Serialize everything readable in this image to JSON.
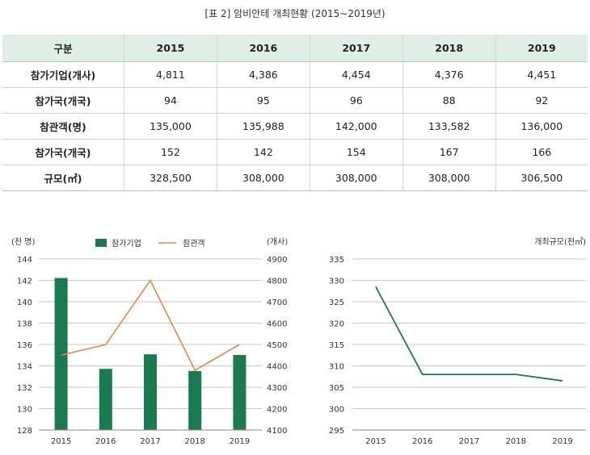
{
  "caption": "[표 2] 암비안테 개최현황 (2015~2019년)",
  "table": {
    "header_label": "구분",
    "years": [
      "2015",
      "2016",
      "2017",
      "2018",
      "2019"
    ],
    "rows": [
      {
        "label": "참가기업(개사)",
        "values": [
          "4,811",
          "4,386",
          "4,454",
          "4,376",
          "4,451"
        ]
      },
      {
        "label": "참가국(개국)",
        "values": [
          "94",
          "95",
          "96",
          "88",
          "92"
        ]
      },
      {
        "label": "참관객(명)",
        "values": [
          "135,000",
          "135,988",
          "142,000",
          "133,582",
          "136,000"
        ]
      },
      {
        "label": "참가국(개국)",
        "values": [
          "152",
          "142",
          "154",
          "167",
          "166"
        ]
      },
      {
        "label": "규모(㎡)",
        "values": [
          "328,500",
          "308,000",
          "308,000",
          "308,000",
          "306,500"
        ]
      }
    ]
  },
  "colors": {
    "bar": "#1b7a4f",
    "visitor_line": "#e8874c",
    "area_line": "#1b7a4f",
    "grid": "#c9c9c9"
  },
  "chart_data": [
    {
      "type": "bar",
      "categories": [
        "2015",
        "2016",
        "2017",
        "2018",
        "2019"
      ],
      "series": [
        {
          "name": "참가기업",
          "type": "bar",
          "axis": "right",
          "values": [
            4811,
            4386,
            4454,
            4376,
            4451
          ]
        },
        {
          "name": "참관객",
          "type": "line",
          "axis": "left",
          "values": [
            135.0,
            135.988,
            142.0,
            133.582,
            136.0
          ]
        }
      ],
      "ylabel": "(천 명)",
      "y2label": "(개사)",
      "ylim": [
        128,
        144
      ],
      "yticks": [
        128,
        130,
        132,
        134,
        136,
        138,
        140,
        142,
        144
      ],
      "y2lim": [
        4100,
        4900
      ],
      "y2ticks": [
        4100,
        4200,
        4300,
        4400,
        4500,
        4600,
        4700,
        4800,
        4900
      ],
      "legend": "top",
      "grid": true
    },
    {
      "type": "line",
      "categories": [
        "2015",
        "2016",
        "2017",
        "2018",
        "2019"
      ],
      "series": [
        {
          "values": [
            328.5,
            308.0,
            308.0,
            308.0,
            306.5
          ]
        }
      ],
      "ylabel": "개최규모(천㎡)",
      "ylim": [
        295,
        335
      ],
      "yticks": [
        295,
        300,
        305,
        310,
        315,
        320,
        325,
        330,
        335
      ],
      "grid": true
    }
  ]
}
